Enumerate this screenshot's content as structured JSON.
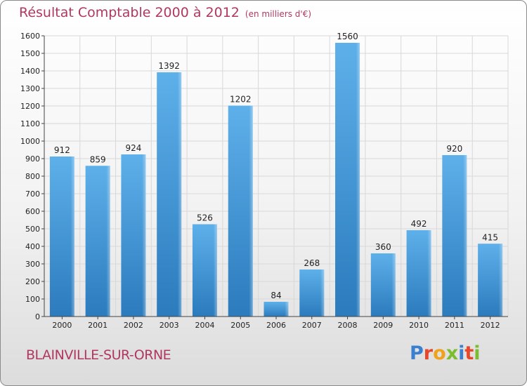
{
  "title": "Résultat Comptable 2000 à 2012",
  "unit": "(en milliers d'€)",
  "commune": "BLAINVILLE-SUR-ORNE",
  "logo": "Proxiti",
  "colors": {
    "title": "#b0385e",
    "bar_light": "#5eb0ea",
    "bar_dark": "#2b7bbd",
    "grid": "#d8d8d8"
  },
  "chart_data": {
    "type": "bar",
    "title": "Résultat Comptable 2000 à 2012",
    "subtitle": "(en milliers d'€)",
    "xlabel": "",
    "ylabel": "",
    "ylim": [
      0,
      1600
    ],
    "yticks": [
      0,
      100,
      200,
      300,
      400,
      500,
      600,
      700,
      800,
      900,
      1000,
      1100,
      1200,
      1300,
      1400,
      1500,
      1600
    ],
    "grid": true,
    "categories": [
      "2000",
      "2001",
      "2002",
      "2003",
      "2004",
      "2005",
      "2006",
      "2007",
      "2008",
      "2009",
      "2010",
      "2011",
      "2012"
    ],
    "values": [
      912,
      859,
      924,
      1392,
      526,
      1202,
      84,
      268,
      1560,
      360,
      492,
      920,
      415
    ]
  }
}
